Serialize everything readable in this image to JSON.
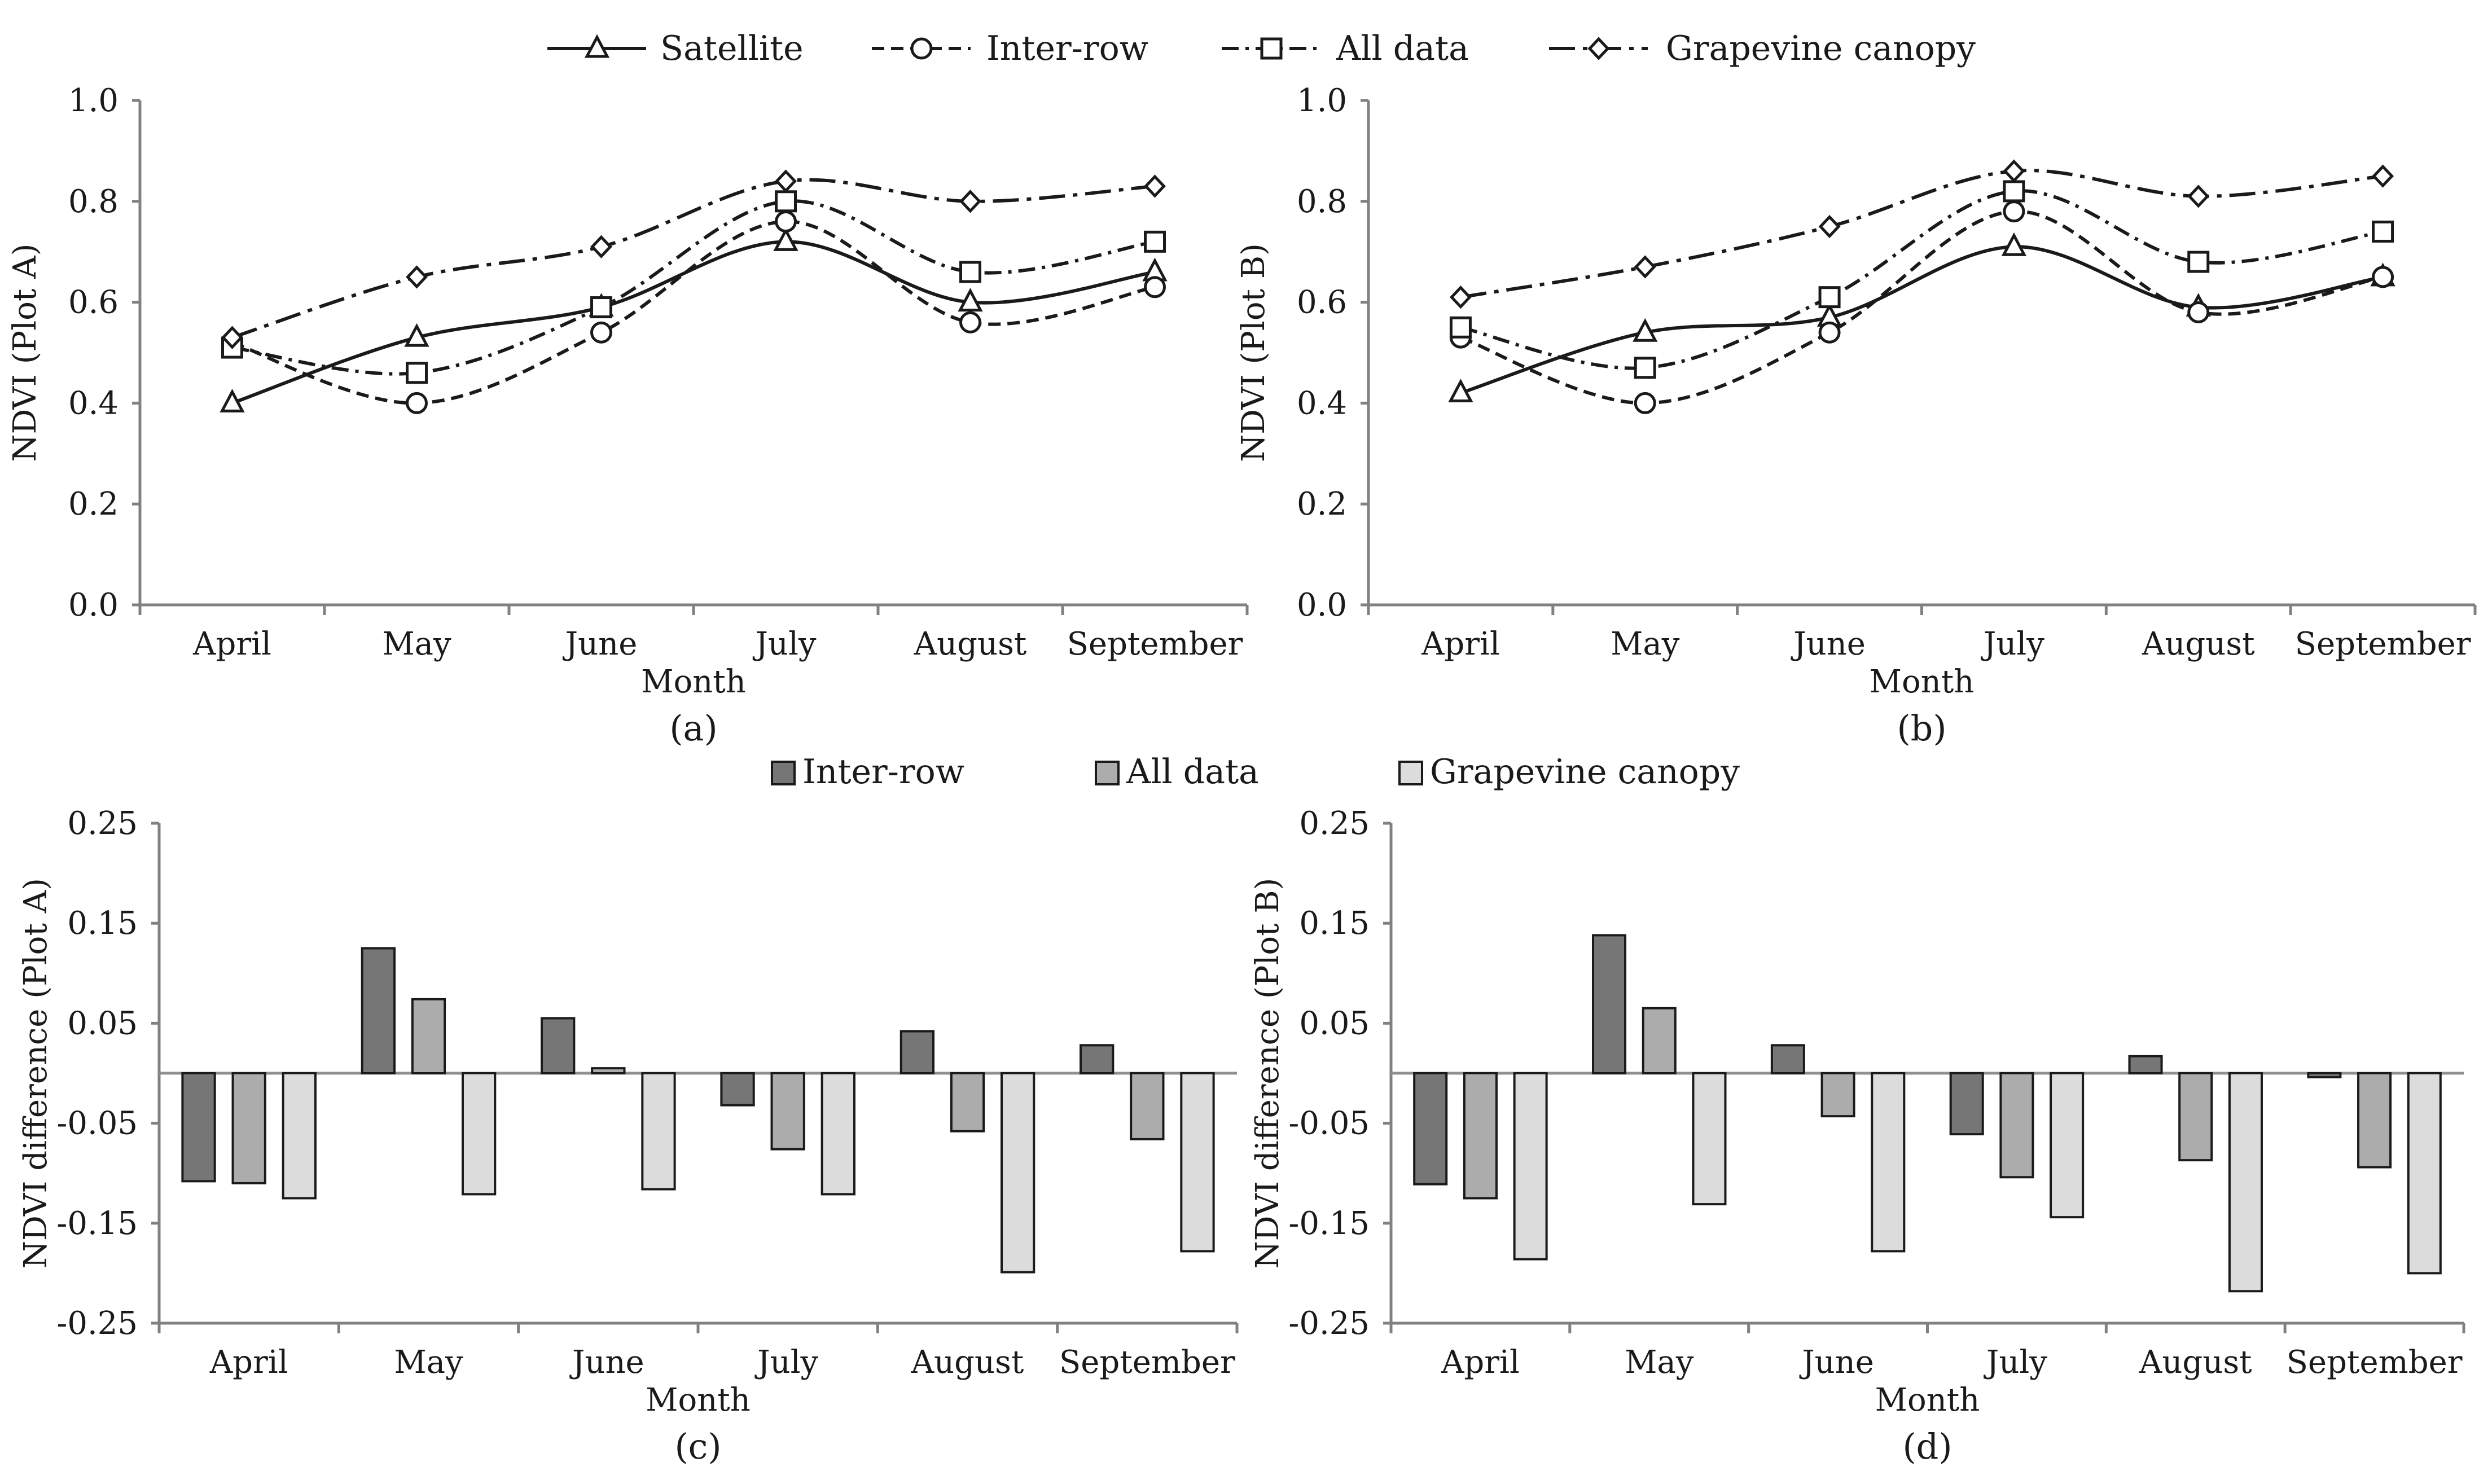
{
  "figure": {
    "line_legend": [
      "Satellite",
      "Inter-row",
      "All data",
      "Grapevine canopy"
    ],
    "bar_legend": [
      "Inter-row",
      "All data",
      "Grapevine canopy"
    ]
  },
  "chart_data": [
    {
      "id": "a",
      "type": "line",
      "panel_label": "(a)",
      "xlabel": "Month",
      "ylabel": "NDVI (Plot A)",
      "categories": [
        "April",
        "May",
        "June",
        "July",
        "August",
        "September"
      ],
      "ylim": [
        0.0,
        1.0
      ],
      "yticks": [
        0.0,
        0.2,
        0.4,
        0.6,
        0.8,
        1.0
      ],
      "ytick_labels": [
        "0.0",
        "0.2",
        "0.4",
        "0.6",
        "0.8",
        "1.0"
      ],
      "series": [
        {
          "name": "Satellite",
          "values": [
            0.4,
            0.53,
            0.59,
            0.72,
            0.6,
            0.66
          ]
        },
        {
          "name": "Inter-row",
          "values": [
            0.52,
            0.4,
            0.54,
            0.76,
            0.56,
            0.63
          ]
        },
        {
          "name": "All data",
          "values": [
            0.51,
            0.46,
            0.59,
            0.8,
            0.66,
            0.72
          ]
        },
        {
          "name": "Grapevine canopy",
          "values": [
            0.53,
            0.65,
            0.71,
            0.84,
            0.8,
            0.83
          ]
        }
      ]
    },
    {
      "id": "b",
      "type": "line",
      "panel_label": "(b)",
      "xlabel": "Month",
      "ylabel": "NDVI (Plot B)",
      "categories": [
        "April",
        "May",
        "June",
        "July",
        "August",
        "September"
      ],
      "ylim": [
        0.0,
        1.0
      ],
      "yticks": [
        0.0,
        0.2,
        0.4,
        0.6,
        0.8,
        1.0
      ],
      "ytick_labels": [
        "0.0",
        "0.2",
        "0.4",
        "0.6",
        "0.8",
        "1.0"
      ],
      "series": [
        {
          "name": "Satellite",
          "values": [
            0.42,
            0.54,
            0.57,
            0.71,
            0.59,
            0.65
          ]
        },
        {
          "name": "Inter-row",
          "values": [
            0.53,
            0.4,
            0.54,
            0.78,
            0.58,
            0.65
          ]
        },
        {
          "name": "All data",
          "values": [
            0.55,
            0.47,
            0.61,
            0.82,
            0.68,
            0.74
          ]
        },
        {
          "name": "Grapevine canopy",
          "values": [
            0.61,
            0.67,
            0.75,
            0.86,
            0.81,
            0.85
          ]
        }
      ]
    },
    {
      "id": "c",
      "type": "bar",
      "panel_label": "(c)",
      "xlabel": "Month",
      "ylabel": "NDVI difference (Plot A)",
      "categories": [
        "April",
        "May",
        "June",
        "July",
        "August",
        "September"
      ],
      "ylim": [
        -0.25,
        0.25
      ],
      "yticks": [
        -0.25,
        -0.15,
        -0.05,
        0.05,
        0.15,
        0.25
      ],
      "ytick_labels": [
        "-0.25",
        "-0.15",
        "-0.05",
        "0.05",
        "0.15",
        "0.25"
      ],
      "series": [
        {
          "name": "Inter-row",
          "values": [
            -0.108,
            0.125,
            0.055,
            -0.032,
            0.042,
            0.028
          ]
        },
        {
          "name": "All data",
          "values": [
            -0.11,
            0.074,
            0.005,
            -0.076,
            -0.058,
            -0.066
          ]
        },
        {
          "name": "Grapevine canopy",
          "values": [
            -0.125,
            -0.121,
            -0.116,
            -0.121,
            -0.199,
            -0.178
          ]
        }
      ]
    },
    {
      "id": "d",
      "type": "bar",
      "panel_label": "(d)",
      "xlabel": "Month",
      "ylabel": "NDVI difference (Plot B)",
      "categories": [
        "April",
        "May",
        "June",
        "July",
        "August",
        "September"
      ],
      "ylim": [
        -0.25,
        0.25
      ],
      "yticks": [
        -0.25,
        -0.15,
        -0.05,
        0.05,
        0.15,
        0.25
      ],
      "ytick_labels": [
        "-0.25",
        "-0.15",
        "-0.05",
        "0.05",
        "0.15",
        "0.25"
      ],
      "series": [
        {
          "name": "Inter-row",
          "values": [
            -0.111,
            0.138,
            0.028,
            -0.061,
            0.017,
            -0.004
          ]
        },
        {
          "name": "All data",
          "values": [
            -0.125,
            0.065,
            -0.043,
            -0.104,
            -0.087,
            -0.094
          ]
        },
        {
          "name": "Grapevine canopy",
          "values": [
            -0.186,
            -0.131,
            -0.178,
            -0.144,
            -0.218,
            -0.2
          ]
        }
      ]
    }
  ]
}
